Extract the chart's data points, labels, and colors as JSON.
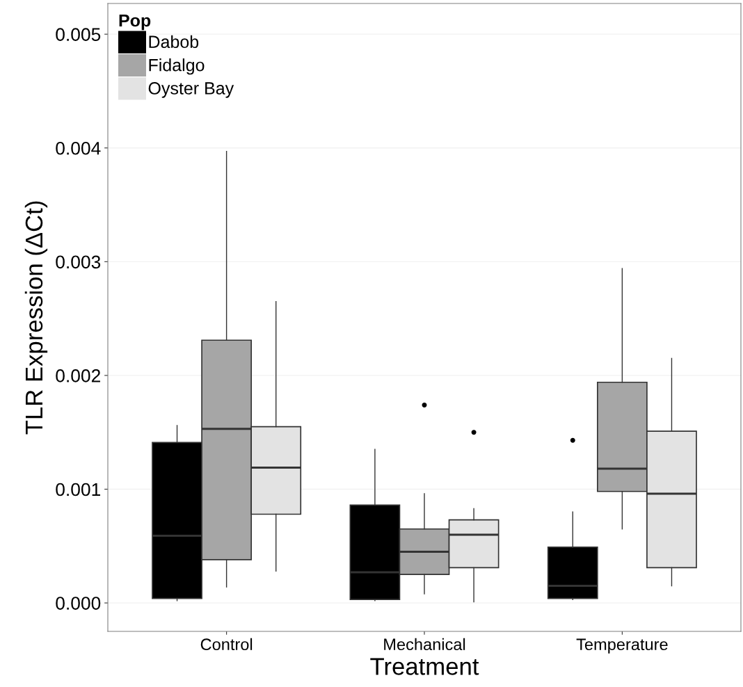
{
  "chart_data": {
    "type": "box",
    "xlabel": "Treatment",
    "ylabel": "TLR Expression (ΔCt)",
    "legend_title": "Pop",
    "legend": "top left",
    "grid": "y",
    "categories": [
      "Control",
      "Mechanical",
      "Temperature"
    ],
    "ylim": [
      -0.00025,
      0.00527
    ],
    "yticks": [
      {
        "value": 0,
        "label": "0.000"
      },
      {
        "value": 0.001,
        "label": "0.001"
      },
      {
        "value": 0.002,
        "label": "0.002"
      },
      {
        "value": 0.003,
        "label": "0.003"
      },
      {
        "value": 0.004,
        "label": "0.004"
      },
      {
        "value": 0.005,
        "label": "0.005"
      }
    ],
    "series": [
      {
        "name": "Dabob",
        "color": "#000000",
        "boxes": [
          {
            "low": 2e-05,
            "q1": 4e-05,
            "median": 0.00059,
            "q3": 0.00141,
            "high": 0.00156
          },
          {
            "low": 2e-05,
            "q1": 3e-05,
            "median": 0.00027,
            "q3": 0.00086,
            "high": 0.00135
          },
          {
            "low": 3e-05,
            "q1": 4e-05,
            "median": 0.00015,
            "q3": 0.00049,
            "high": 0.0008,
            "outliers": [
              0.00143
            ]
          }
        ]
      },
      {
        "name": "Fidalgo",
        "color": "#a6a6a6",
        "boxes": [
          {
            "low": 0.00014,
            "q1": 0.00038,
            "median": 0.00153,
            "q3": 0.00231,
            "high": 0.00397
          },
          {
            "low": 8e-05,
            "q1": 0.00025,
            "median": 0.00045,
            "q3": 0.00065,
            "high": 0.00096,
            "outliers": [
              0.00174
            ]
          },
          {
            "low": 0.00065,
            "q1": 0.00098,
            "median": 0.00118,
            "q3": 0.00194,
            "high": 0.00294
          }
        ]
      },
      {
        "name": "Oyster Bay",
        "color": "#e3e3e3",
        "boxes": [
          {
            "low": 0.00028,
            "q1": 0.00078,
            "median": 0.00119,
            "q3": 0.00155,
            "high": 0.00265
          },
          {
            "low": 1e-05,
            "q1": 0.00031,
            "median": 0.0006,
            "q3": 0.00073,
            "high": 0.00083,
            "outliers": [
              0.0015
            ]
          },
          {
            "low": 0.00015,
            "q1": 0.00031,
            "median": 0.00096,
            "q3": 0.00151,
            "high": 0.00215
          }
        ]
      }
    ]
  }
}
